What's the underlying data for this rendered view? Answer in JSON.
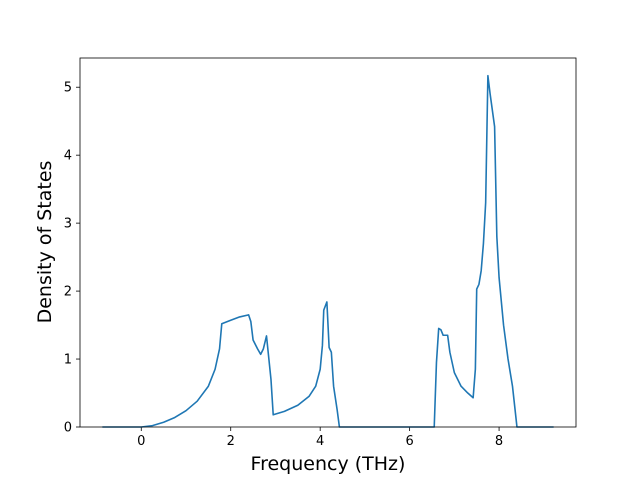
{
  "chart_data": {
    "type": "line",
    "x_label": "Frequency (THz)",
    "y_label": "Density of States",
    "x": [
      -0.87,
      0,
      0.25,
      0.5,
      0.75,
      1.0,
      1.25,
      1.5,
      1.65,
      1.75,
      1.8,
      2.0,
      2.2,
      2.4,
      2.45,
      2.5,
      2.6,
      2.67,
      2.73,
      2.8,
      2.9,
      2.95,
      3.2,
      3.5,
      3.75,
      3.9,
      4.0,
      4.05,
      4.08,
      4.15,
      4.2,
      4.25,
      4.3,
      4.38,
      4.43,
      6.0,
      6.55,
      6.6,
      6.65,
      6.7,
      6.75,
      6.85,
      6.9,
      7.0,
      7.15,
      7.3,
      7.42,
      7.47,
      7.5,
      7.55,
      7.6,
      7.65,
      7.7,
      7.75,
      7.8,
      7.9,
      7.95,
      8.0,
      8.1,
      8.2,
      8.3,
      8.35,
      8.4,
      9.22
    ],
    "series": [
      {
        "color": "#1f77b4",
        "values": [
          0,
          0,
          0.02,
          0.07,
          0.14,
          0.24,
          0.38,
          0.6,
          0.85,
          1.15,
          1.52,
          1.57,
          1.62,
          1.65,
          1.55,
          1.28,
          1.15,
          1.07,
          1.15,
          1.34,
          0.7,
          0.18,
          0.23,
          0.32,
          0.45,
          0.6,
          0.85,
          1.2,
          1.72,
          1.84,
          1.17,
          1.1,
          0.6,
          0.25,
          0,
          0,
          0,
          0.95,
          1.45,
          1.43,
          1.35,
          1.35,
          1.1,
          0.8,
          0.6,
          0.5,
          0.43,
          0.85,
          2.03,
          2.1,
          2.3,
          2.7,
          3.3,
          5.17,
          4.9,
          4.42,
          2.8,
          2.2,
          1.5,
          1.0,
          0.6,
          0.3,
          0,
          0
        ]
      }
    ],
    "xlim": [
      -1.37,
      9.72
    ],
    "ylim": [
      0,
      5.43
    ],
    "xticks": [
      0,
      2,
      4,
      6,
      8
    ],
    "yticks": [
      0,
      1,
      2,
      3,
      4,
      5
    ],
    "grid": false
  }
}
